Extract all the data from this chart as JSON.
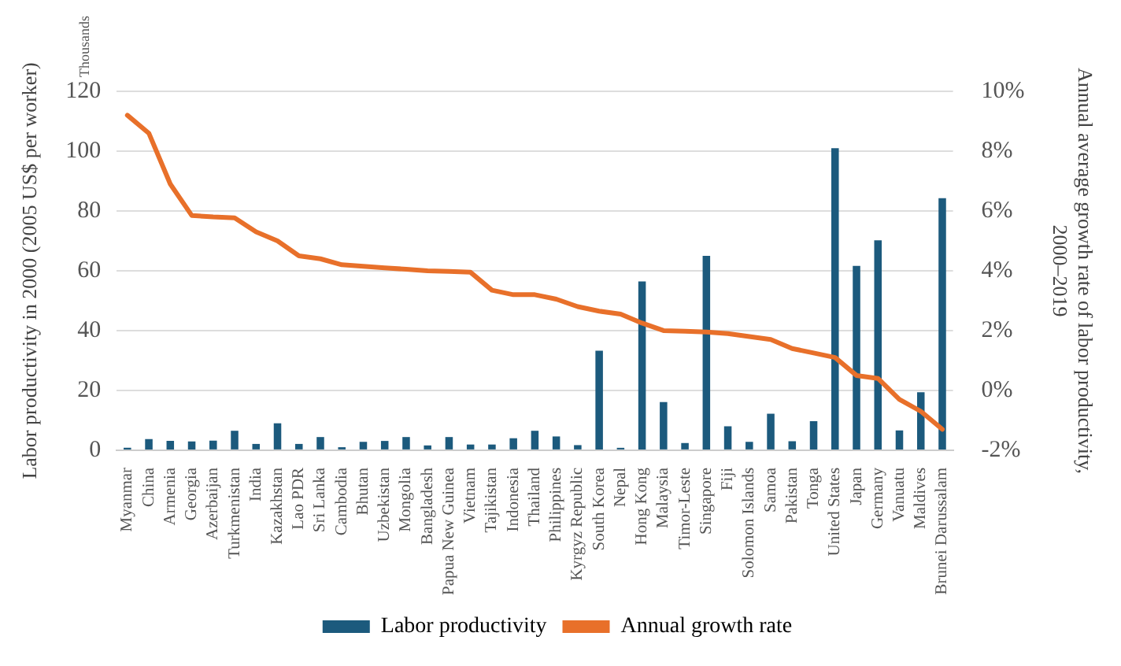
{
  "chart_data": {
    "type": "bar",
    "ylabel": "Labor productivity in 2000 (2005 US$ per worker)",
    "y2label": "Annual average growth rate of labor productivity,\n2000–2019",
    "annotations": [
      "Thousands"
    ],
    "categories": [
      "Myanmar",
      "China",
      "Armenia",
      "Georgia",
      "Azerbaijan",
      "Turkmenistan",
      "India",
      "Kazakhstan",
      "Lao PDR",
      "Sri Lanka",
      "Cambodia",
      "Bhutan",
      "Uzbekistan",
      "Mongolia",
      "Bangladesh",
      "Papua New Guinea",
      "Vietnam",
      "Tajikistan",
      "Indonesia",
      "Thailand",
      "Philippines",
      "Kyrgyz Republic",
      "South Korea",
      "Nepal",
      "Hong Kong",
      "Malaysia",
      "Timor-Leste",
      "Singapore",
      "Fiji",
      "Solomon Islands",
      "Samoa",
      "Pakistan",
      "Tonga",
      "United States",
      "Japan",
      "Germany",
      "Vanuatu",
      "Maldives",
      "Brunei Darussalam"
    ],
    "series": [
      {
        "name": "Labor productivity",
        "color": "#1c5a7d",
        "values": [
          0.8,
          3.7,
          3.1,
          2.9,
          3.2,
          6.5,
          2.1,
          9.0,
          2.1,
          4.4,
          1.0,
          2.8,
          3.1,
          4.4,
          1.6,
          4.4,
          1.9,
          1.9,
          4.0,
          6.5,
          4.6,
          1.7,
          33.3,
          0.8,
          56.4,
          16.1,
          2.4,
          65.0,
          8.0,
          2.8,
          12.2,
          3.0,
          9.7,
          101,
          61.6,
          70.2,
          6.6,
          19.4,
          84.3
        ]
      },
      {
        "name": "Annual growth rate",
        "type": "line",
        "axis": "y2",
        "color": "#e8702a",
        "values": [
          9.2,
          8.6,
          6.9,
          5.85,
          5.8,
          5.77,
          5.3,
          5.0,
          4.5,
          4.4,
          4.2,
          4.15,
          4.1,
          4.05,
          4.0,
          3.98,
          3.95,
          3.35,
          3.2,
          3.2,
          3.05,
          2.8,
          2.65,
          2.55,
          2.25,
          2.0,
          1.98,
          1.95,
          1.9,
          1.8,
          1.7,
          1.4,
          1.25,
          1.1,
          0.5,
          0.4,
          -0.3,
          -0.7,
          -1.3
        ]
      }
    ],
    "ylim": [
      0,
      120
    ],
    "yticks": [
      0,
      20,
      40,
      60,
      80,
      100,
      120
    ],
    "y2lim": [
      -2,
      10
    ],
    "y2ticks": [
      {
        "value": -2,
        "label": "-2%"
      },
      {
        "value": 0,
        "label": "0%"
      },
      {
        "value": 2,
        "label": "2%"
      },
      {
        "value": 4,
        "label": "4%"
      },
      {
        "value": 6,
        "label": "6%"
      },
      {
        "value": 8,
        "label": "8%"
      },
      {
        "value": 10,
        "label": "10%"
      }
    ],
    "grid": "y",
    "legend": "bottom",
    "marker": "none",
    "line_style": "solid"
  }
}
